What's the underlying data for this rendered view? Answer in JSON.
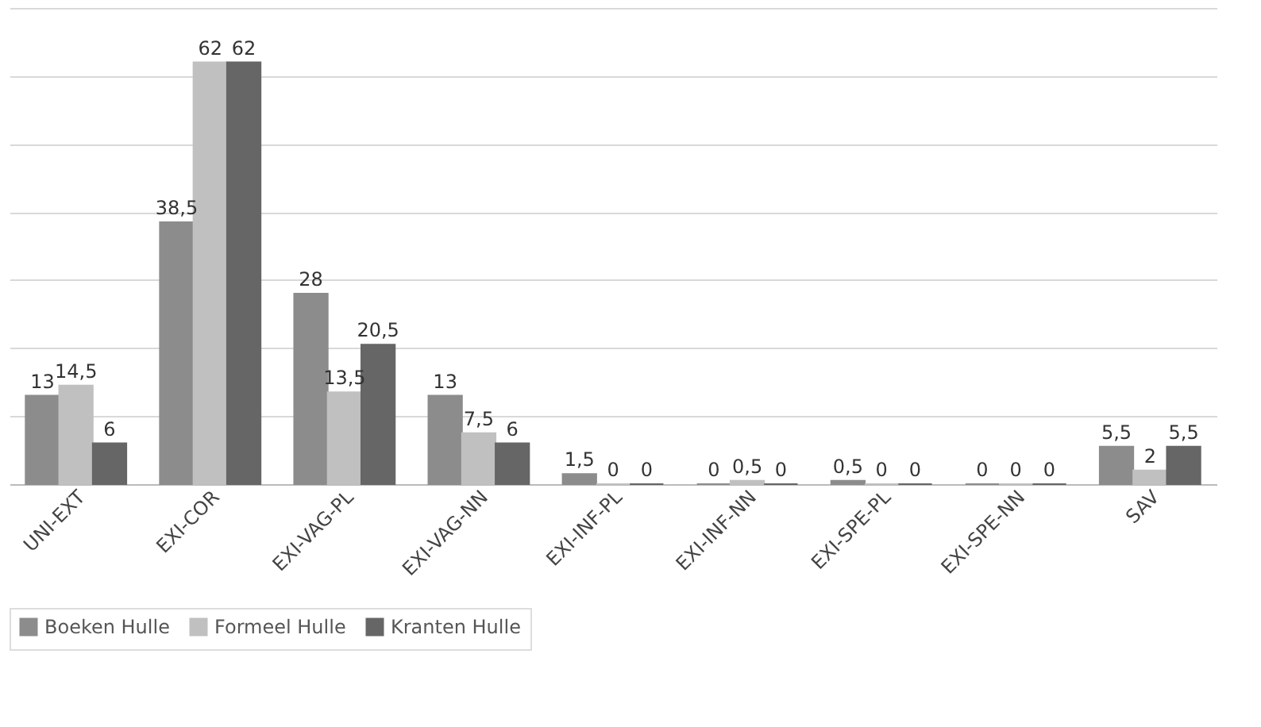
{
  "chart_data": {
    "type": "bar",
    "categories": [
      "UNI-EXT",
      "EXI-COR",
      "EXI-VAG-PL",
      "EXI-VAG-NN",
      "EXI-INF-PL",
      "EXI-INF-NN",
      "EXI-SPE-PL",
      "EXI-SPE-NN",
      "SAV"
    ],
    "series": [
      {
        "name": "Boeken Hulle",
        "color": "#8c8c8c",
        "values": [
          13,
          38.5,
          28,
          13,
          1.5,
          0,
          0.5,
          0,
          5.5
        ],
        "value_labels": [
          "13",
          "38,5",
          "28",
          "13",
          "1,5",
          "0",
          "0,5",
          "0",
          "5,5"
        ]
      },
      {
        "name": "Formeel Hulle",
        "color": "#c0c0c0",
        "values": [
          14.5,
          62,
          13.5,
          7.5,
          0,
          0.5,
          0,
          0,
          2
        ],
        "value_labels": [
          "14,5",
          "62",
          "13,5",
          "7,5",
          "0",
          "0,5",
          "0",
          "0",
          "2"
        ]
      },
      {
        "name": "Kranten Hulle",
        "color": "#666666",
        "values": [
          6,
          62,
          20.5,
          6,
          0,
          0,
          0,
          0,
          5.5
        ],
        "value_labels": [
          "6",
          "62",
          "20,5",
          "6",
          "0",
          "0",
          "0",
          "0",
          "5,5"
        ]
      }
    ],
    "ylim": [
      0,
      70
    ],
    "yticks": [
      {
        "value": 0,
        "label": null
      },
      {
        "value": 10,
        "label": null
      },
      {
        "value": 20,
        "label": null
      },
      {
        "value": 30,
        "label": null
      },
      {
        "value": 40,
        "label": null
      },
      {
        "value": 50,
        "label": null
      },
      {
        "value": 60,
        "label": null
      },
      {
        "value": 70,
        "label": null
      }
    ],
    "grid": "y",
    "tick_labels": "x",
    "legend": "bottom"
  }
}
